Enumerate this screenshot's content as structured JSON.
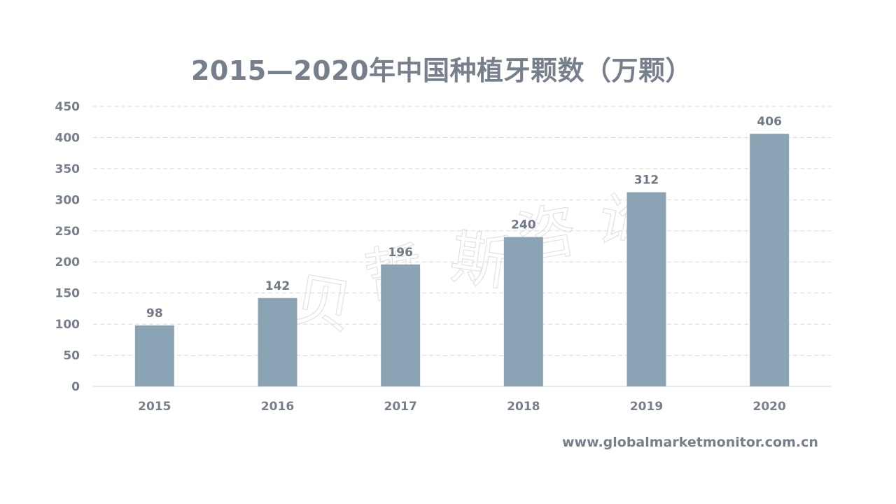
{
  "chart_data": {
    "type": "bar",
    "title": "2015—2020年中国种植牙颗数（万颗）",
    "categories": [
      "2015",
      "2016",
      "2017",
      "2018",
      "2019",
      "2020"
    ],
    "values": [
      98,
      142,
      196,
      240,
      312,
      406
    ],
    "xlabel": "",
    "ylabel": "",
    "ylim": [
      0,
      450
    ],
    "yticks": [
      0,
      50,
      100,
      150,
      200,
      250,
      300,
      350,
      400,
      450
    ],
    "data_labels": [
      "98",
      "142",
      "196",
      "240",
      "312",
      "406"
    ],
    "grid": true,
    "legend": "none",
    "bar_color": "#8aa4b6",
    "gridline_color": "#d9d9d9",
    "text_color": "#76808d"
  },
  "watermark": {
    "characters": [
      "贝",
      "哲",
      "斯",
      "咨",
      "询"
    ]
  },
  "source": {
    "url": "www.globalmarketmonitor.com.cn"
  }
}
